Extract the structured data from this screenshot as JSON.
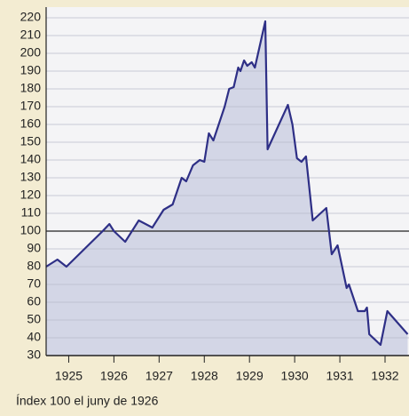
{
  "chart_data": {
    "type": "area",
    "caption": "Índex 100 el juny de 1926",
    "x": [
      1924.5,
      1924.75,
      1924.95,
      1925.35,
      1925.75,
      1925.9,
      1926.0,
      1926.25,
      1926.55,
      1926.85,
      1927.1,
      1927.3,
      1927.5,
      1927.6,
      1927.75,
      1927.9,
      1928.0,
      1928.1,
      1928.2,
      1928.45,
      1928.55,
      1928.65,
      1928.75,
      1928.8,
      1928.88,
      1928.95,
      1929.05,
      1929.12,
      1929.35,
      1929.4,
      1929.85,
      1929.95,
      1930.05,
      1930.15,
      1930.25,
      1930.4,
      1930.7,
      1930.82,
      1930.95,
      1931.15,
      1931.2,
      1931.4,
      1931.55,
      1931.6,
      1931.65,
      1931.9,
      1932.05,
      1932.5
    ],
    "values": [
      80,
      84,
      80,
      90,
      100,
      104,
      100,
      94,
      106,
      102,
      112,
      115,
      130,
      128,
      137,
      140,
      139,
      155,
      151,
      170,
      180,
      181,
      192,
      190,
      196,
      193,
      195,
      192,
      218,
      146,
      171,
      160,
      141,
      139,
      142,
      106,
      113,
      87,
      92,
      68,
      70,
      55,
      55,
      57,
      42,
      36,
      55,
      42
    ],
    "color": "#2e2f86",
    "fill": "#d3d6e6",
    "xlim": [
      1924.5,
      1932.53
    ],
    "xticks": [
      1925,
      1926,
      1927,
      1928,
      1929,
      1930,
      1931,
      1932
    ],
    "ylim": [
      30,
      225
    ],
    "yticks": [
      30,
      40,
      50,
      60,
      70,
      80,
      90,
      100,
      110,
      120,
      130,
      140,
      150,
      160,
      170,
      180,
      190,
      200,
      210,
      220
    ],
    "reference_line": 100,
    "grid": true
  }
}
